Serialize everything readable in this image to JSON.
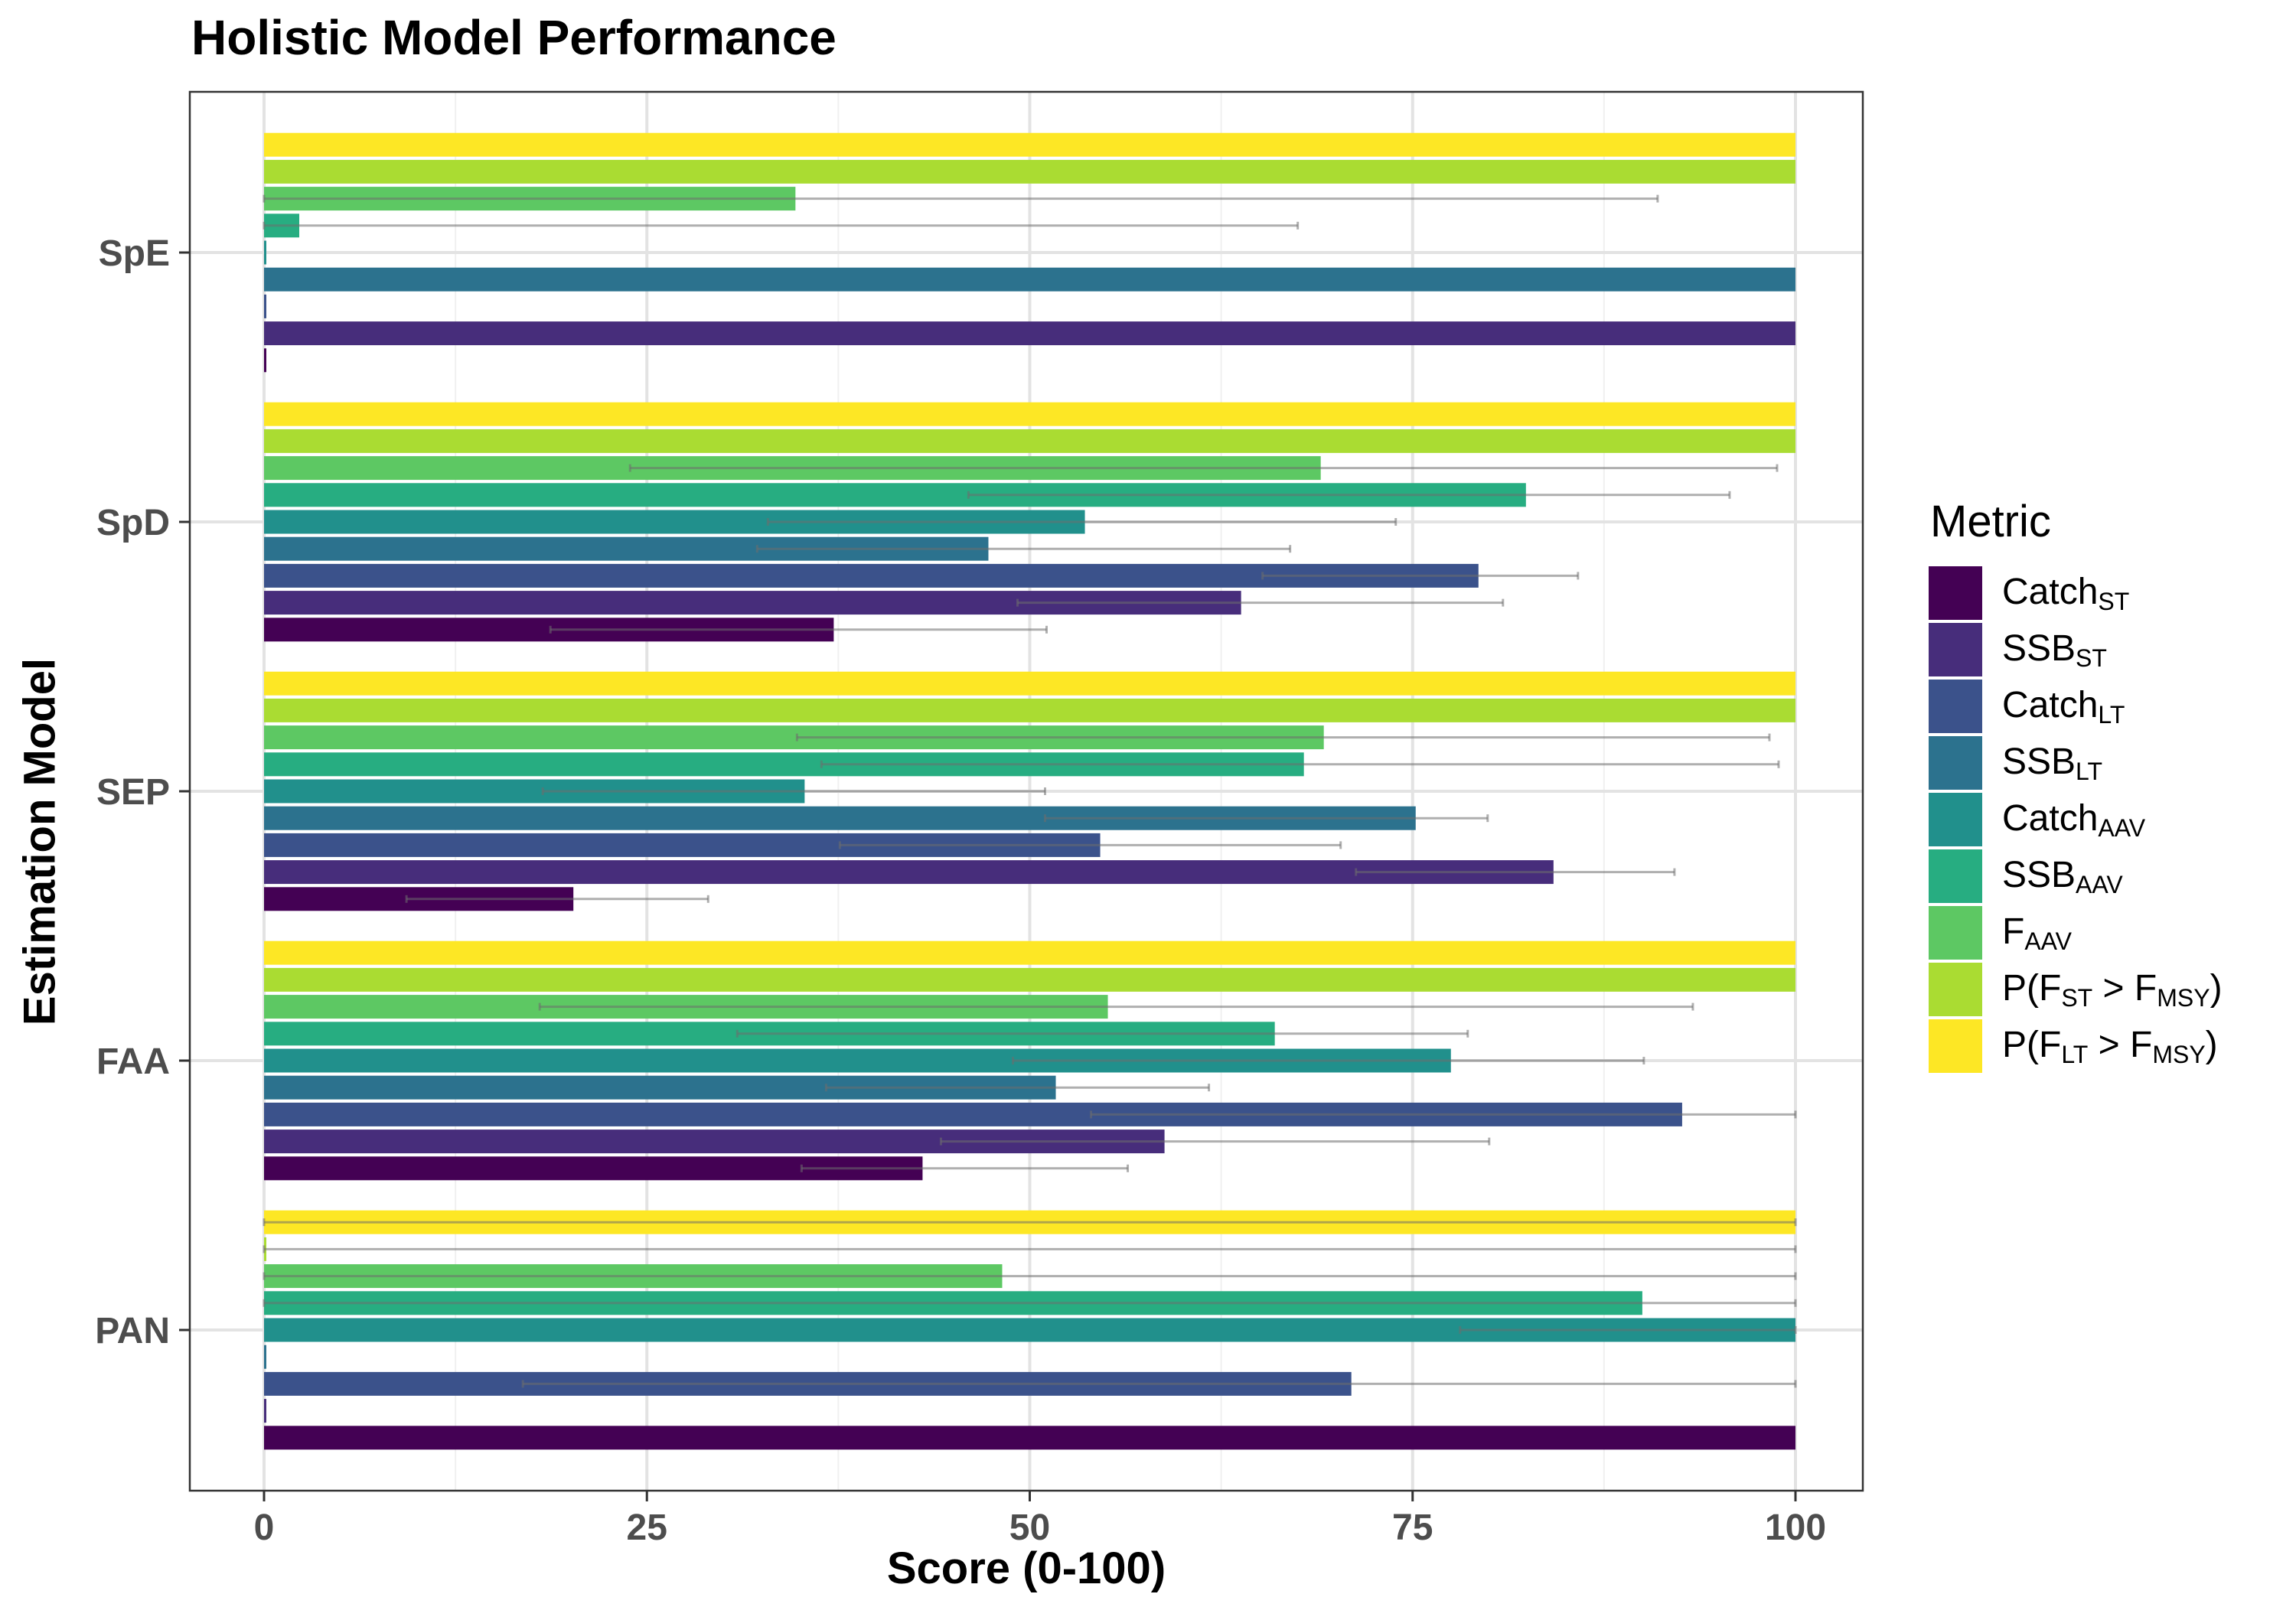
{
  "chart_data": {
    "type": "bar",
    "orientation": "horizontal",
    "title": "Holistic Model Performance",
    "xlabel": "Score (0-100)",
    "ylabel": "Estimation Model",
    "xlim": [
      0,
      100
    ],
    "xticks": [
      0,
      25,
      50,
      75,
      100
    ],
    "grid": true,
    "legend_title": "Metric",
    "legend_position": "right",
    "categories": [
      "SpE",
      "SpD",
      "SEP",
      "FAA",
      "PAN"
    ],
    "series": [
      {
        "name": "Catch_ST",
        "color": "#440154",
        "values": [
          0,
          37.2,
          20.2,
          43.0,
          100
        ],
        "err_low": [
          0,
          18.7,
          9.3,
          35.1,
          100
        ],
        "err_high": [
          0,
          51.1,
          29.0,
          56.4,
          100
        ]
      },
      {
        "name": "SSB_ST",
        "color": "#472D7B",
        "values": [
          100,
          63.8,
          84.2,
          58.8,
          0
        ],
        "err_low": [
          100,
          49.2,
          71.3,
          44.2,
          0
        ],
        "err_high": [
          100,
          80.9,
          92.1,
          80.0,
          0
        ]
      },
      {
        "name": "Catch_LT",
        "color": "#3B528B",
        "values": [
          0,
          79.3,
          54.6,
          92.6,
          71.0
        ],
        "err_low": [
          0,
          65.2,
          37.6,
          54.0,
          16.9
        ],
        "err_high": [
          0,
          85.8,
          70.3,
          100,
          100
        ]
      },
      {
        "name": "SSB_LT",
        "color": "#2C728E",
        "values": [
          100,
          47.3,
          75.2,
          51.7,
          0
        ],
        "err_low": [
          100,
          32.2,
          51.0,
          36.7,
          0
        ],
        "err_high": [
          100,
          67.0,
          79.9,
          61.7,
          0
        ]
      },
      {
        "name": "Catch_AAV",
        "color": "#21908C",
        "values": [
          0,
          53.6,
          35.3,
          77.5,
          100
        ],
        "err_low": [
          0,
          32.9,
          18.2,
          48.9,
          78.1
        ],
        "err_high": [
          0,
          73.9,
          51.0,
          90.1,
          100
        ]
      },
      {
        "name": "SSB_AAV",
        "color": "#27AD81",
        "values": [
          2.3,
          82.4,
          67.9,
          66.0,
          90.0
        ],
        "err_low": [
          0,
          46.0,
          36.4,
          30.9,
          0
        ],
        "err_high": [
          67.5,
          95.7,
          98.9,
          78.6,
          100
        ]
      },
      {
        "name": "F_AAV",
        "color": "#5DC863",
        "values": [
          34.7,
          69.0,
          69.2,
          55.1,
          48.2
        ],
        "err_low": [
          0,
          23.9,
          34.8,
          18.0,
          0
        ],
        "err_high": [
          91.0,
          98.8,
          98.3,
          93.3,
          100
        ]
      },
      {
        "name": "P(F_ST > F_MSY)",
        "color": "#AADC32",
        "values": [
          100,
          100,
          100,
          100,
          0
        ],
        "err_low": [
          100,
          100,
          100,
          100,
          0
        ],
        "err_high": [
          100,
          100,
          100,
          100,
          100
        ]
      },
      {
        "name": "P(F_LT > F_MSY)",
        "color": "#FDE725",
        "values": [
          100,
          100,
          100,
          100,
          100
        ],
        "err_low": [
          100,
          100,
          100,
          100,
          0
        ],
        "err_high": [
          100,
          100,
          100,
          100,
          100
        ]
      }
    ]
  },
  "legend": {
    "title": "Metric",
    "items": [
      {
        "main": "Catch",
        "sub": "ST",
        "color": "#440154"
      },
      {
        "main": "SSB",
        "sub": "ST",
        "color": "#472D7B"
      },
      {
        "main": "Catch",
        "sub": "LT",
        "color": "#3B528B"
      },
      {
        "main": "SSB",
        "sub": "LT",
        "color": "#2C728E"
      },
      {
        "main": "Catch",
        "sub": "AAV",
        "color": "#21908C"
      },
      {
        "main": "SSB",
        "sub": "AAV",
        "color": "#27AD81"
      },
      {
        "main": "F",
        "sub": "AAV",
        "color": "#5DC863"
      },
      {
        "main": "P(F",
        "sub": "ST",
        "main2": " > F",
        "sub2": "MSY",
        "main3": ")",
        "color": "#AADC32"
      },
      {
        "main": "P(F",
        "sub": "LT",
        "main2": " > F",
        "sub2": "MSY",
        "main3": ")",
        "color": "#FDE725"
      }
    ]
  }
}
